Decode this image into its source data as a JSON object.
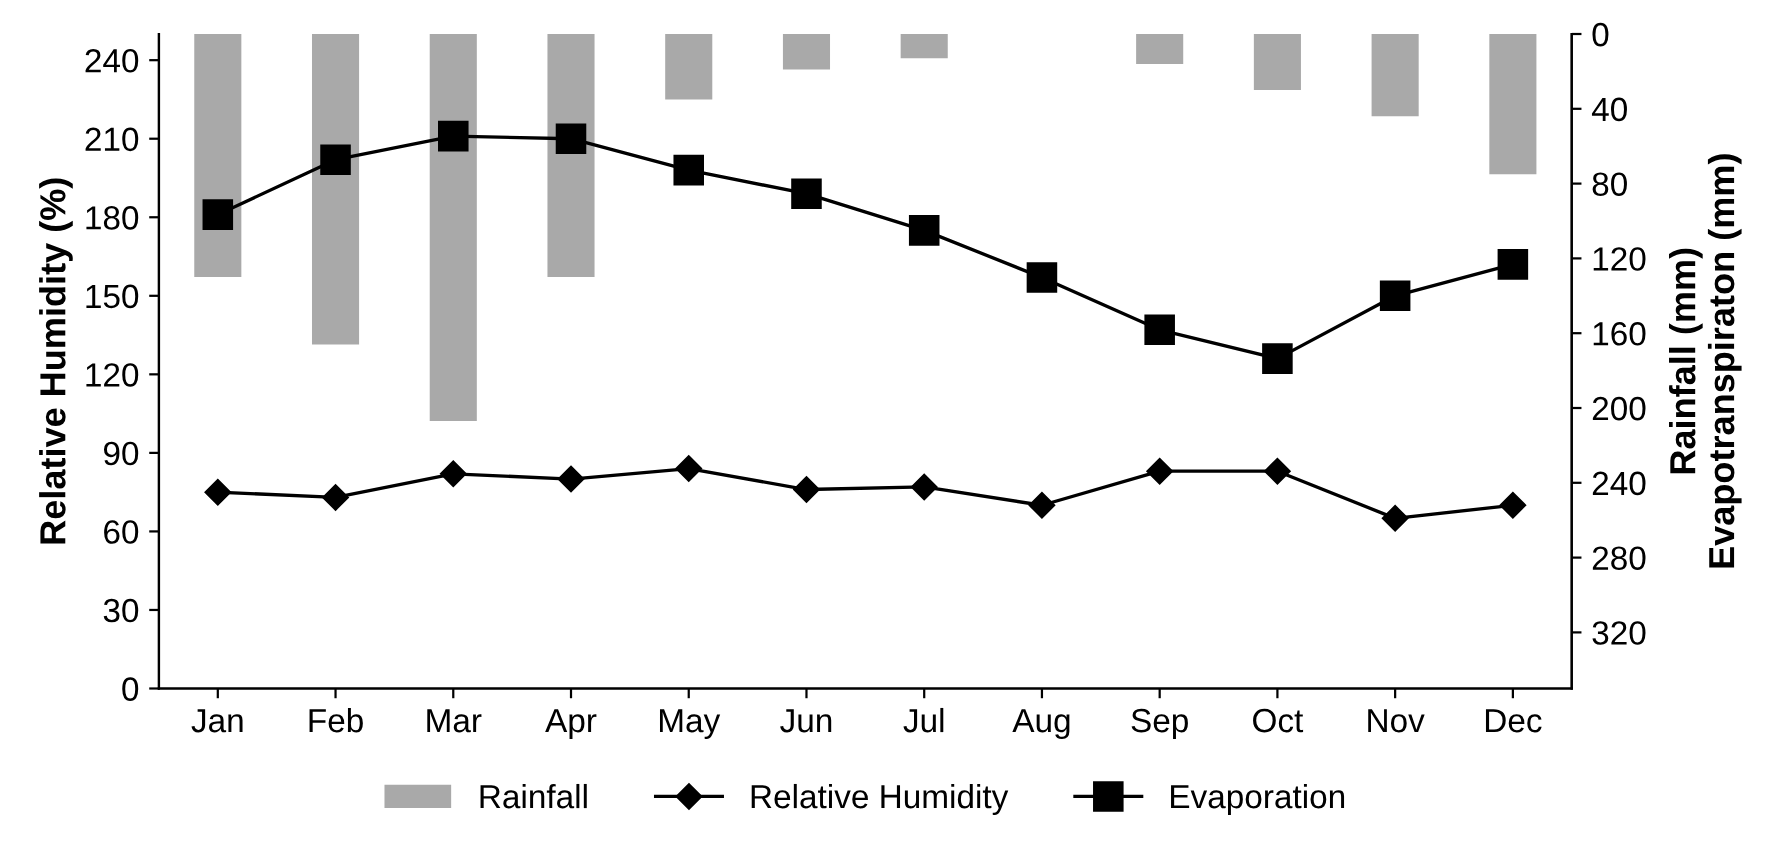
{
  "chart_data": {
    "type": "line",
    "categories": [
      "Jan",
      "Feb",
      "Mar",
      "Apr",
      "May",
      "Jun",
      "Jul",
      "Aug",
      "Sep",
      "Oct",
      "Nov",
      "Dec"
    ],
    "ylabel": "Relative Humidity (%)",
    "y2label": "Rainfall (mm)\nEvapotranspiraton (mm)",
    "ylim": [
      0,
      250
    ],
    "yticks": [
      0,
      30,
      60,
      90,
      120,
      150,
      180,
      210,
      240
    ],
    "y2lim": [
      350,
      0
    ],
    "y2ticks": [
      0,
      40,
      80,
      120,
      160,
      200,
      240,
      280,
      320
    ],
    "legend": "bottom",
    "grid": false,
    "series": [
      {
        "name": "Rainfall",
        "type": "bar",
        "axis": "y2",
        "color": "#a9a9a9",
        "values": [
          130,
          166,
          207,
          130,
          35,
          19,
          13,
          0,
          16,
          30,
          44,
          75
        ]
      },
      {
        "name": "Relative Humidity",
        "color": "#000000",
        "marker": "diamond",
        "values": [
          75,
          73,
          82,
          80,
          84,
          76,
          77,
          70,
          83,
          83,
          65,
          70
        ]
      },
      {
        "name": "Evaporation",
        "color": "#000000",
        "marker": "square",
        "values": [
          181,
          202,
          211,
          210,
          198,
          189,
          175,
          157,
          137,
          126,
          150,
          162
        ]
      }
    ]
  }
}
